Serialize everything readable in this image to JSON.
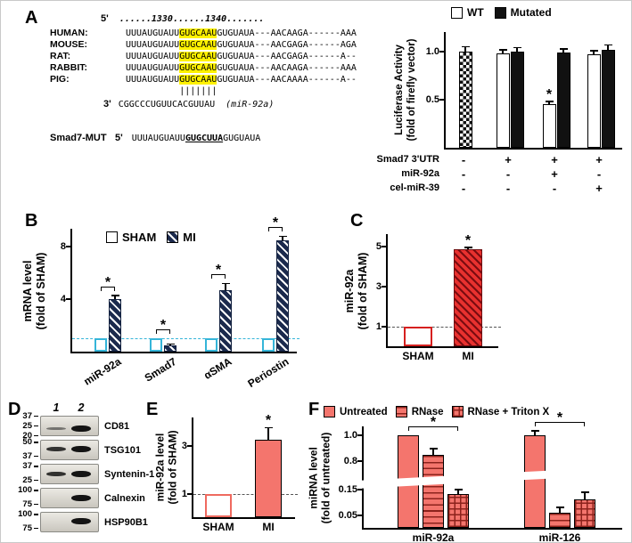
{
  "panels": {
    "A": "A",
    "B": "B",
    "C": "C",
    "D": "D",
    "E": "E",
    "F": "F"
  },
  "colors": {
    "cyan": "#35b5d9",
    "navy": "#1b2a4d",
    "red": "#d6201f",
    "salmon": "#f4756d",
    "highlight_yellow": "#fff200"
  },
  "panelA": {
    "five_prime": "5'",
    "three_prime": "3'",
    "ruler": "......1330......1340.......",
    "alignment": [
      {
        "species": "HUMAN:",
        "pre": "UUUAUGUAUU",
        "seed": "GUGCAAU",
        "post": "GUGUAUA---AACAAGA------AAA"
      },
      {
        "species": "MOUSE:",
        "pre": "UUUAUGUAUU",
        "seed": "GUGCAAU",
        "post": "GUGUAUA---AACGAGA------AGA"
      },
      {
        "species": "RAT:",
        "pre": "UUUAUGUAUU",
        "seed": "GUGCAAU",
        "post": "GUGUAUA---AACGAGA------A--"
      },
      {
        "species": "RABBIT:",
        "pre": "UUUAUGUAUU",
        "seed": "GUGCAAU",
        "post": "GUGUAUA---AACAAGA------AAA"
      },
      {
        "species": "PIG:",
        "pre": "UUUAUGUAUU",
        "seed": "GUGCAAU",
        "post": "GUGUAUA---AACAAAA------A--"
      }
    ],
    "pairing_marks": "|||||||",
    "mirna": {
      "sequence": "CGGCCCUGUUCACGUUAU",
      "name": "(miR-92a)"
    },
    "mutant": {
      "name": "Smad7-MUT",
      "pre": "UUUAUGUAUU",
      "mut": "GUGCUUA",
      "post": "GUGUAUA"
    }
  },
  "panelD": {
    "lanes": [
      "1",
      "2"
    ],
    "blots": [
      {
        "protein": "CD81",
        "markers": [
          "37",
          "25",
          "20"
        ],
        "band_position": 0.62,
        "bands": [
          {
            "lane": 0,
            "strength": "faint"
          },
          {
            "lane": 1,
            "strength": "strong"
          }
        ]
      },
      {
        "protein": "TSG101",
        "markers": [
          "50",
          "37"
        ],
        "band_position": 0.45,
        "bands": [
          {
            "lane": 0,
            "strength": "medium"
          },
          {
            "lane": 1,
            "strength": "strong"
          }
        ]
      },
      {
        "protein": "Syntenin-1",
        "markers": [
          "37",
          "25"
        ],
        "band_position": 0.5,
        "bands": [
          {
            "lane": 0,
            "strength": "medium"
          },
          {
            "lane": 1,
            "strength": "strong"
          }
        ]
      },
      {
        "protein": "Calnexin",
        "markers": [
          "100",
          "75"
        ],
        "band_position": 0.48,
        "bands": [
          {
            "lane": 1,
            "strength": "strong"
          }
        ]
      },
      {
        "protein": "HSP90B1",
        "markers": [
          "100",
          "75"
        ],
        "band_position": 0.45,
        "bands": [
          {
            "lane": 1,
            "strength": "strong"
          }
        ]
      }
    ]
  },
  "chart_data": [
    {
      "id": "luciferase",
      "type": "bar",
      "title": "",
      "ylabel_line1": "Luciferase Activity",
      "ylabel_line2": "(fold of firefly vector)",
      "legend": [
        "WT",
        "Mutated"
      ],
      "yticks": [
        "0.5",
        "1.0"
      ],
      "ymax": 1.22,
      "series": [
        {
          "name": "WT",
          "values": [
            1.0,
            0.98,
            0.45,
            0.97
          ],
          "errors": [
            0.05,
            0.04,
            0.03,
            0.04
          ],
          "styles": [
            "checker",
            "white",
            "white",
            "white"
          ]
        },
        {
          "name": "Mutated",
          "values": [
            null,
            1.0,
            0.99,
            1.02
          ],
          "errors": [
            null,
            0.04,
            0.04,
            0.05
          ],
          "styles": "black"
        }
      ],
      "condition_rows": [
        {
          "label": "Smad7 3'UTR",
          "values": [
            "-",
            "+",
            "+",
            "+"
          ]
        },
        {
          "label": "miR-92a",
          "values": [
            "-",
            "-",
            "+",
            "-"
          ]
        },
        {
          "label": "cel-miR-39",
          "values": [
            "-",
            "-",
            "-",
            "+"
          ]
        }
      ],
      "sig": [
        {
          "group": 2,
          "series": 0
        }
      ]
    },
    {
      "id": "panelB",
      "type": "bar",
      "ylabel_line1": "mRNA level",
      "ylabel_line2": "(fold of SHAM)",
      "legend": [
        "SHAM",
        "MI"
      ],
      "categories": [
        "miR-92a",
        "Smad7",
        "αSMA",
        "Periostin"
      ],
      "yticks": [
        "4",
        "8"
      ],
      "ymax": 9.5,
      "refline": 1,
      "refline_color": "#35b5d9",
      "series": [
        {
          "name": "SHAM",
          "values": [
            1.0,
            1.0,
            1.0,
            1.0
          ],
          "errors": [
            0,
            0,
            0,
            0
          ],
          "styles": "open-cyan"
        },
        {
          "name": "MI",
          "values": [
            4.0,
            0.5,
            4.7,
            8.5
          ],
          "errors": [
            0.3,
            0.1,
            0.5,
            0.3
          ],
          "styles": "hatch-navy"
        }
      ],
      "sig_brackets": [
        0,
        1,
        2,
        3
      ]
    },
    {
      "id": "panelC",
      "type": "bar",
      "ylabel_line1": "miR-92a",
      "ylabel_line2": "(fold of SHAM)",
      "categories": [
        "SHAM",
        "MI"
      ],
      "yticks": [
        "1",
        "3",
        "5"
      ],
      "ymax": 5.7,
      "refline": 1,
      "refline_color": "#555555",
      "series": [
        {
          "name": "",
          "values": [
            1.0,
            4.85
          ],
          "errors": [
            0,
            0.1
          ],
          "styles": [
            "open-red",
            "hatch-red"
          ]
        }
      ],
      "sig": [
        {
          "group": 1,
          "series": 0
        }
      ]
    },
    {
      "id": "panelE",
      "type": "bar",
      "ylabel_line1": "miR-92a level",
      "ylabel_line2": "(fold of SHAM)",
      "categories": [
        "SHAM",
        "MI"
      ],
      "yticks": [
        "1",
        "3"
      ],
      "ymax": 4.3,
      "refline": 1,
      "refline_color": "#555555",
      "series": [
        {
          "name": "",
          "values": [
            1.0,
            3.3
          ],
          "errors": [
            0,
            0.5
          ],
          "styles": [
            "open-salmon",
            "salmon"
          ]
        }
      ],
      "sig": [
        {
          "group": 1,
          "series": 0
        }
      ]
    },
    {
      "id": "panelF",
      "type": "bar",
      "ylabel_line1": "miRNA level",
      "ylabel_line2": "(fold of untreated)",
      "legend": [
        "Untreated",
        "RNase",
        "RNase + Triton X"
      ],
      "categories": [
        "miR-92a",
        "miR-126"
      ],
      "yticks": [
        "0.05",
        "0.15",
        "0.8",
        "1.0"
      ],
      "broken_axis": {
        "lower_max": 0.18,
        "upper_min": 0.7,
        "upper_max": 1.08
      },
      "series": [
        {
          "name": "Untreated",
          "values": [
            1.0,
            1.0
          ],
          "errors": [
            0,
            0.04
          ],
          "styles": "salmon"
        },
        {
          "name": "RNase",
          "values": [
            0.85,
            0.06
          ],
          "errors": [
            0.05,
            0.02
          ],
          "styles": "salmon-stripe"
        },
        {
          "name": "RNase + Triton X",
          "values": [
            0.13,
            0.11
          ],
          "errors": [
            0.02,
            0.03
          ],
          "styles": "salmon-grid"
        }
      ],
      "sig_brackets": [
        0,
        1
      ]
    }
  ]
}
